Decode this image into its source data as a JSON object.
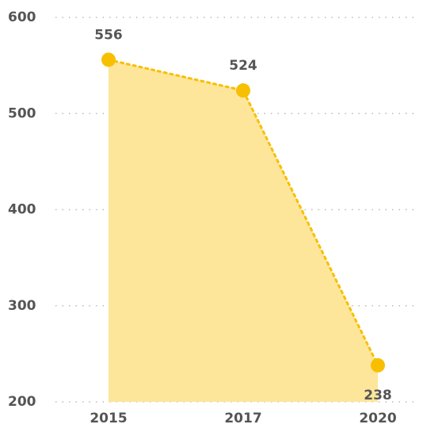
{
  "chart_data": {
    "type": "area",
    "categories": [
      "2015",
      "2017",
      "2020"
    ],
    "values": [
      556,
      524,
      238
    ],
    "color": "#f8bf00",
    "fill": "#fde59a",
    "ylim": [
      200,
      600
    ],
    "yticks": [
      200,
      300,
      400,
      500,
      600
    ],
    "grid": true
  }
}
